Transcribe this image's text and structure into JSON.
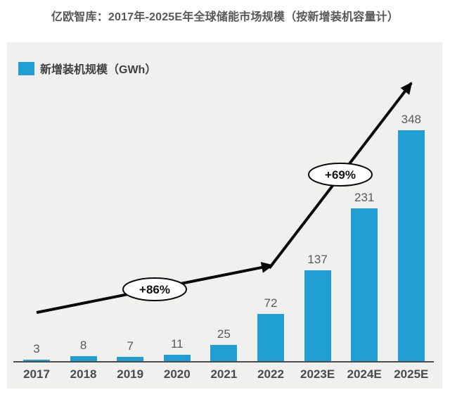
{
  "title": "亿欧智库：2017年-2025E年全球储能市场规模（按新增装机容量计）",
  "legend": {
    "label": "新增装机规模（GWh）",
    "swatch_color": "#219fd4"
  },
  "chart_data": {
    "type": "bar",
    "title": "亿欧智库：2017年-2025E年全球储能市场规模（按新增装机容量计）",
    "series_name": "新增装机规模（GWh）",
    "categories": [
      "2017",
      "2018",
      "2019",
      "2020",
      "2021",
      "2022",
      "2023E",
      "2024E",
      "2025E"
    ],
    "values": [
      3,
      8,
      7,
      11,
      25,
      72,
      137,
      231,
      348
    ],
    "unit": "GWh",
    "bar_color": "#219fd4",
    "background_color": "#f0f0ee",
    "grid": "off",
    "legend_position": "top-left",
    "xlabel": "",
    "ylabel": "新增装机规模（GWh）",
    "annotations": [
      {
        "text": "+86%"
      },
      {
        "text": "+69%"
      }
    ],
    "trend_arrow": "two-segment rising arrow from 2017 area to above 2025E bar"
  }
}
